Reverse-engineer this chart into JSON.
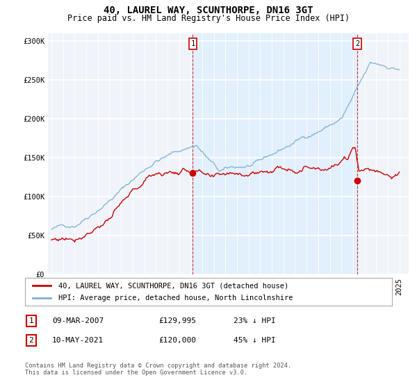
{
  "title": "40, LAUREL WAY, SCUNTHORPE, DN16 3GT",
  "subtitle": "Price paid vs. HM Land Registry's House Price Index (HPI)",
  "ylabel_ticks": [
    "£0",
    "£50K",
    "£100K",
    "£150K",
    "£200K",
    "£250K",
    "£300K"
  ],
  "ytick_values": [
    0,
    50000,
    100000,
    150000,
    200000,
    250000,
    300000
  ],
  "ylim": [
    0,
    310000
  ],
  "xlim_start": 1994.7,
  "xlim_end": 2025.8,
  "sale1_x": 2007.19,
  "sale1_y": 129995,
  "sale1_label": "1",
  "sale1_date": "09-MAR-2007",
  "sale1_price": "£129,995",
  "sale1_hpi": "23% ↓ HPI",
  "sale2_x": 2021.36,
  "sale2_y": 120000,
  "sale2_label": "2",
  "sale2_date": "10-MAY-2021",
  "sale2_price": "£120,000",
  "sale2_hpi": "45% ↓ HPI",
  "red_line_color": "#cc0000",
  "blue_line_color": "#7bafd4",
  "shade_color": "#ddeeff",
  "marker_box_color": "#cc0000",
  "background_color": "#f0f4fa",
  "grid_color": "#ffffff",
  "legend_label_red": "40, LAUREL WAY, SCUNTHORPE, DN16 3GT (detached house)",
  "legend_label_blue": "HPI: Average price, detached house, North Lincolnshire",
  "footer_text": "Contains HM Land Registry data © Crown copyright and database right 2024.\nThis data is licensed under the Open Government Licence v3.0.",
  "title_fontsize": 10,
  "subtitle_fontsize": 8.5,
  "axis_fontsize": 7.5
}
